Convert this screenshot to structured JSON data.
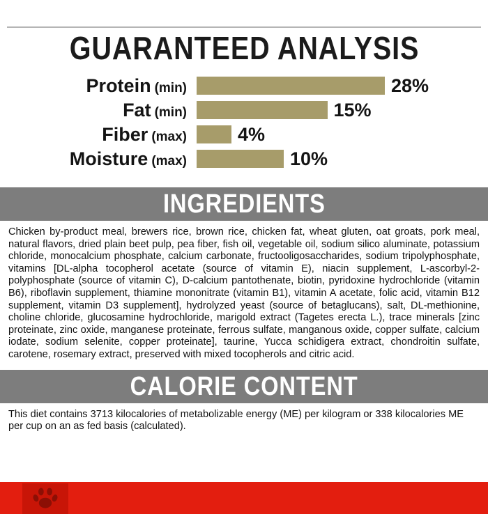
{
  "guaranteed_analysis": {
    "title": "GUARANTEED ANALYSIS",
    "rows": [
      {
        "label": "Protein",
        "qualifier": "(min)",
        "value": "28%",
        "percent": 28
      },
      {
        "label": "Fat",
        "qualifier": "(min)",
        "value": "15%",
        "percent": 15
      },
      {
        "label": "Fiber",
        "qualifier": "(max)",
        "value": "4%",
        "percent": 4
      },
      {
        "label": "Moisture",
        "qualifier": "(max)",
        "value": "10%",
        "percent": 10
      }
    ]
  },
  "chart_data": {
    "type": "bar",
    "categories": [
      "Protein (min)",
      "Fat (min)",
      "Fiber (max)",
      "Moisture (max)"
    ],
    "values": [
      28,
      15,
      4,
      10
    ],
    "title": "GUARANTEED ANALYSIS",
    "xlabel": "",
    "ylabel": "Percent",
    "ylim": [
      0,
      30
    ]
  },
  "ingredients": {
    "title": "INGREDIENTS",
    "text": "Chicken by-product meal, brewers rice, brown rice, chicken fat, wheat gluten, oat groats, pork meal, natural flavors, dried plain beet pulp, pea fiber, fish oil, vegetable oil, sodium silico aluminate, potassium chloride, monocalcium phosphate, calcium carbonate, fructooligosaccharides, sodium tripolyphosphate, vitamins [DL-alpha tocopherol acetate (source of vitamin E), niacin supplement, L-ascorbyl-2-polyphosphate (source of vitamin C), D-calcium pantothenate, biotin, pyridoxine hydrochloride (vitamin B6), riboflavin supplement, thiamine mononitrate (vitamin B1), vitamin A acetate, folic acid, vitamin B12 supplement, vitamin D3 supplement], hydrolyzed yeast (source of betaglucans), salt, DL-methionine, choline chloride, glucosamine hydrochloride, marigold extract (Tagetes erecta L.), trace minerals [zinc proteinate, zinc oxide, manganese proteinate, ferrous sulfate, manganous oxide, copper sulfate, calcium iodate, sodium selenite, copper proteinate], taurine, Yucca schidigera extract, chondroitin sulfate, carotene, rosemary extract, preserved with mixed tocopherols and citric acid."
  },
  "calorie_content": {
    "title": "CALORIE CONTENT",
    "text": "This diet contains 3713 kilocalories of metabolizable energy (ME) per kilogram or 338 kilocalories ME per cup on an as fed basis (calculated)."
  },
  "footer": {
    "logo": "royal-canin-paw-logo"
  },
  "colors": {
    "bar_gold": "#a79c6a",
    "band_gray": "#7d7d7d",
    "brand_red": "#e31e0f",
    "logo_box_red": "#c81507",
    "logo_dark_red": "#8c0f05"
  }
}
